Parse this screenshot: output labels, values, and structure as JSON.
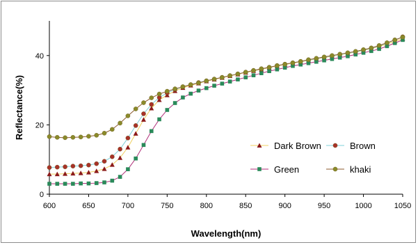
{
  "chart_data": {
    "type": "line",
    "xlabel": "Wavelength(nm)",
    "ylabel": "Reflectance(%)",
    "xlim": [
      600,
      1050
    ],
    "ylim": [
      0,
      50
    ],
    "xticks": [
      600,
      650,
      700,
      750,
      800,
      850,
      900,
      950,
      1000,
      1050
    ],
    "yticks": [
      0,
      20,
      40
    ],
    "grid": false,
    "legend_position": "bottom-right",
    "x": [
      600,
      610,
      620,
      630,
      640,
      650,
      660,
      670,
      680,
      690,
      700,
      710,
      720,
      730,
      740,
      750,
      760,
      770,
      780,
      790,
      800,
      810,
      820,
      830,
      840,
      850,
      860,
      870,
      880,
      890,
      900,
      910,
      920,
      930,
      940,
      950,
      960,
      970,
      980,
      990,
      1000,
      1010,
      1020,
      1030,
      1040,
      1050
    ],
    "series": [
      {
        "name": "Dark Brown",
        "color": "#8b1a1a",
        "line_color": "#f0d060",
        "marker": "triangle",
        "values": [
          5.8,
          5.8,
          5.9,
          6.0,
          6.1,
          6.3,
          6.7,
          7.3,
          8.5,
          10.5,
          13.5,
          17.5,
          21.5,
          24.8,
          27.2,
          28.6,
          29.8,
          30.7,
          31.4,
          32.0,
          32.6,
          33.1,
          33.6,
          34.1,
          34.6,
          35.1,
          35.6,
          36.0,
          36.5,
          37.0,
          37.4,
          37.8,
          38.2,
          38.6,
          39.0,
          39.4,
          39.8,
          40.2,
          40.6,
          41.0,
          41.5,
          42.0,
          42.6,
          43.3,
          44.1,
          44.8
        ]
      },
      {
        "name": "Brown",
        "color": "#a83228",
        "line_color": "#7fd0d8",
        "marker": "circle",
        "values": [
          7.7,
          7.8,
          7.9,
          8.1,
          8.2,
          8.4,
          8.8,
          9.5,
          10.8,
          13.0,
          16.2,
          19.8,
          23.2,
          25.9,
          27.9,
          29.2,
          30.2,
          31.0,
          31.6,
          32.2,
          32.7,
          33.2,
          33.7,
          34.2,
          34.7,
          35.2,
          35.7,
          36.1,
          36.6,
          37.1,
          37.5,
          37.9,
          38.3,
          38.7,
          39.1,
          39.5,
          39.9,
          40.3,
          40.7,
          41.1,
          41.6,
          42.1,
          42.8,
          43.6,
          44.5,
          45.4
        ]
      },
      {
        "name": "Green",
        "color": "#2a8a5a",
        "line_color": "#b0307a",
        "marker": "square",
        "values": [
          3.0,
          3.0,
          3.0,
          3.0,
          3.1,
          3.1,
          3.2,
          3.4,
          3.9,
          5.0,
          7.2,
          10.3,
          14.2,
          18.2,
          21.6,
          24.3,
          26.3,
          27.9,
          29.0,
          29.9,
          30.6,
          31.3,
          31.9,
          32.5,
          33.1,
          33.7,
          34.3,
          34.9,
          35.5,
          36.0,
          36.5,
          37.0,
          37.4,
          37.8,
          38.2,
          38.6,
          39.0,
          39.4,
          39.8,
          40.3,
          40.8,
          41.3,
          41.9,
          42.7,
          43.6,
          44.5
        ]
      },
      {
        "name": "khaki",
        "color": "#8a8a2a",
        "line_color": "#8b5a2b",
        "marker": "circle",
        "values": [
          16.6,
          16.4,
          16.3,
          16.4,
          16.5,
          16.7,
          17.0,
          17.6,
          18.7,
          20.5,
          22.6,
          24.6,
          26.4,
          27.8,
          28.9,
          29.7,
          30.4,
          31.0,
          31.6,
          32.1,
          32.7,
          33.2,
          33.7,
          34.2,
          34.7,
          35.2,
          35.7,
          36.2,
          36.6,
          37.1,
          37.5,
          37.9,
          38.3,
          38.8,
          39.2,
          39.6,
          40.0,
          40.4,
          40.8,
          41.2,
          41.7,
          42.2,
          42.9,
          43.7,
          44.5,
          45.3
        ]
      }
    ]
  }
}
